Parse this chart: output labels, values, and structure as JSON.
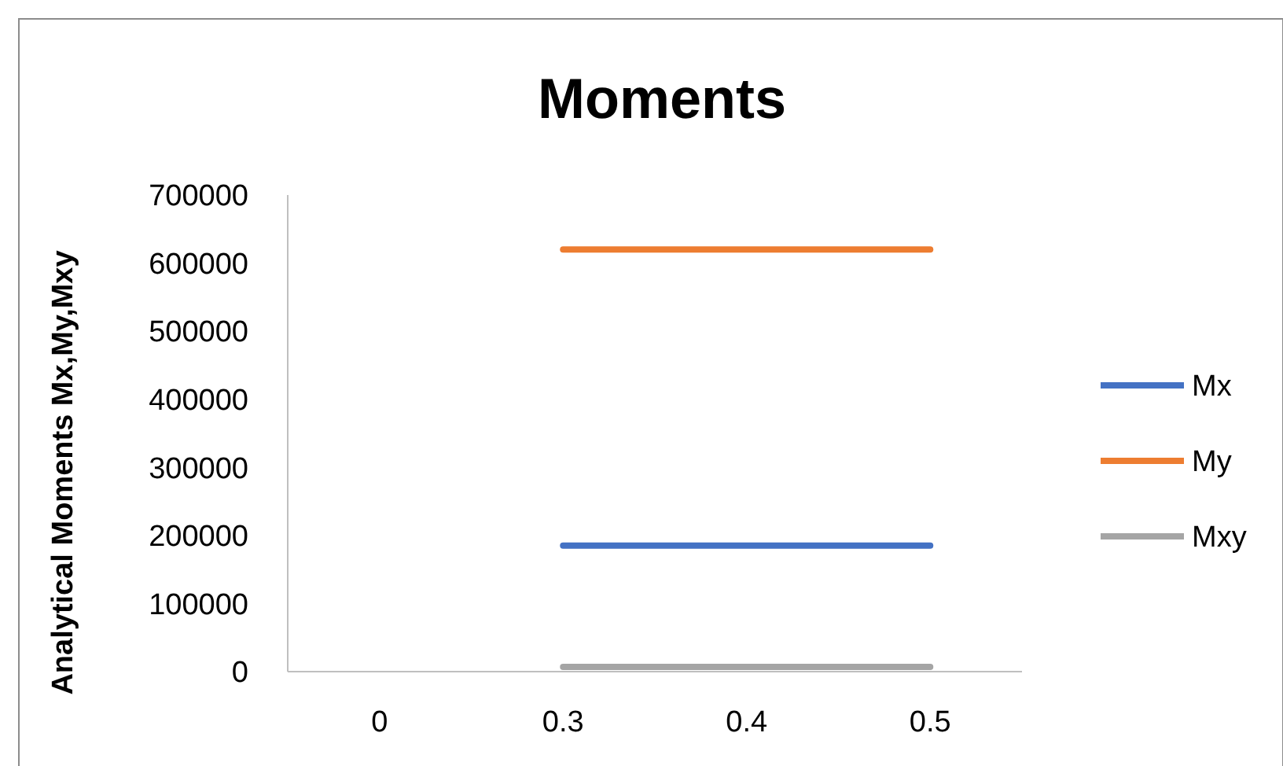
{
  "chart_data": {
    "type": "line",
    "title": "Moments",
    "ylabel": "Analytical Moments Mx,My,Mxy",
    "categories": [
      "0",
      "0.3",
      "0.4",
      "0.5"
    ],
    "series": [
      {
        "name": "Mx",
        "color": "#4472c4",
        "values": [
          null,
          185000,
          185000,
          185000
        ]
      },
      {
        "name": "My",
        "color": "#ed7d31",
        "values": [
          null,
          620000,
          620000,
          620000
        ]
      },
      {
        "name": "Mxy",
        "color": "#a5a5a5",
        "values": [
          null,
          7000,
          7000,
          7000
        ]
      }
    ],
    "ylim": [
      0,
      700000
    ],
    "yticks": [
      0,
      100000,
      200000,
      300000,
      400000,
      500000,
      600000,
      700000
    ],
    "grid": false,
    "legend": "right",
    "marker": "none",
    "line_style": "solid"
  }
}
